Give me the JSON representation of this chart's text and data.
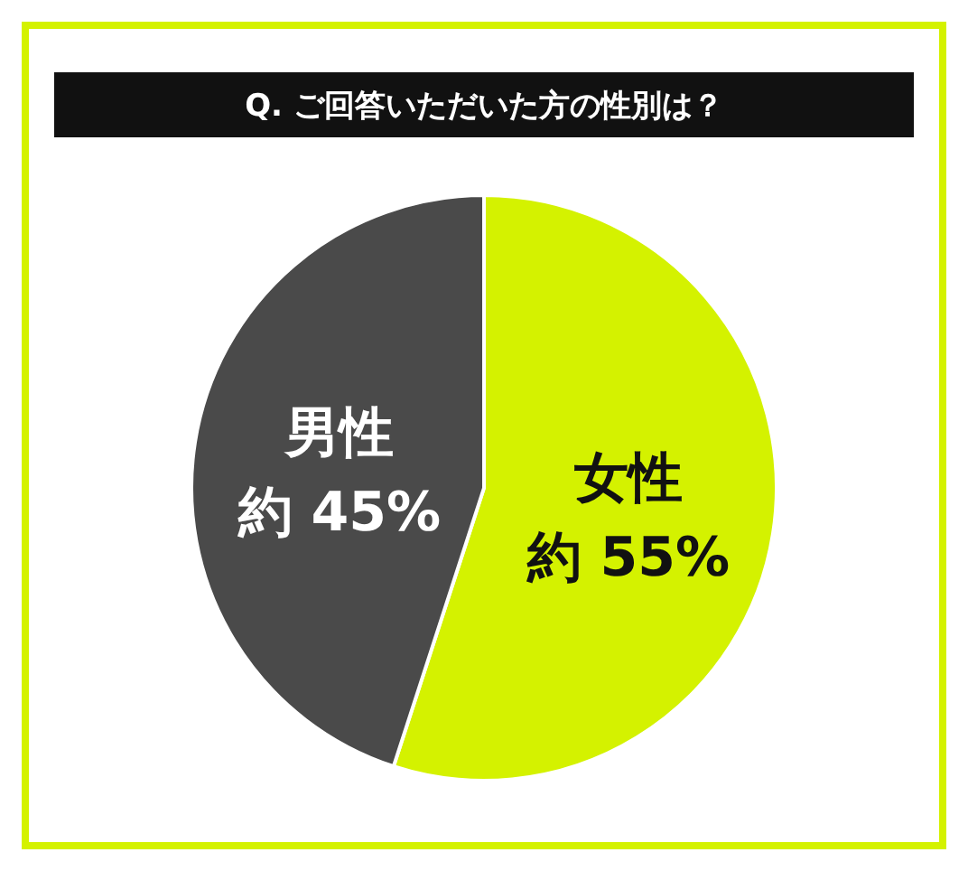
{
  "chart_data": {
    "type": "pie",
    "title": "Q. ご回答いただいた方の性別は？",
    "categories": [
      "女性",
      "男性"
    ],
    "values": [
      55,
      45
    ],
    "colors": [
      "#d4f200",
      "#4a4a4a"
    ],
    "value_labels": [
      "約 55%",
      "約 45%"
    ]
  }
}
